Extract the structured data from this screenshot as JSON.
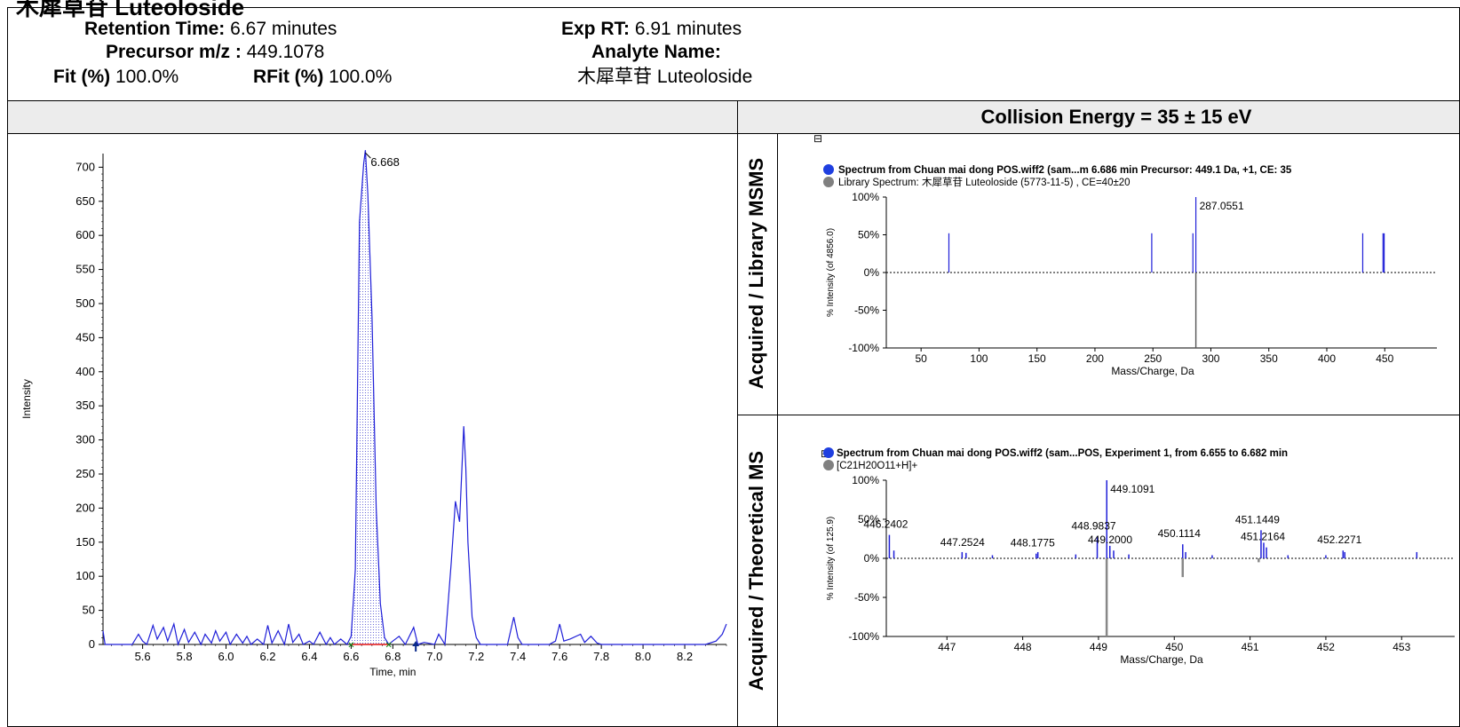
{
  "page_title": "木犀草苷 Luteoloside",
  "info": {
    "retention_time_label": "Retention Time:",
    "retention_time_value": "6.67 minutes",
    "precursor_label": "Precursor m/z :",
    "precursor_value": "449.1078",
    "fit_label": "Fit (%)",
    "fit_value": "100.0%",
    "rfit_label": "RFit (%)",
    "rfit_value": "100.0%",
    "exp_rt_label": "Exp RT:",
    "exp_rt_value": "6.91 minutes",
    "analyte_label": "Analyte Name:",
    "analyte_value": "木犀草苷 Luteoloside"
  },
  "collision_energy": "Collision Energy = 35 ± 15 eV",
  "side_labels": {
    "top": "Acquired / Library MSMS",
    "bottom": "Acquired / Theoretical MS"
  },
  "chart_data": [
    {
      "type": "line",
      "name": "chromatogram",
      "xlabel": "Time, min",
      "ylabel": "Intensity",
      "xlim": [
        5.41,
        8.4
      ],
      "ylim": [
        0,
        720
      ],
      "xticks": [
        "5.6",
        "5.8",
        "6.0",
        "6.2",
        "6.4",
        "6.6",
        "6.8",
        "7.0",
        "7.2",
        "7.4",
        "7.6",
        "7.8",
        "8.0",
        "8.2"
      ],
      "yticks": [
        "0",
        "50",
        "100",
        "150",
        "200",
        "250",
        "300",
        "350",
        "400",
        "450",
        "500",
        "550",
        "600",
        "650",
        "700"
      ],
      "peak_annotation": "6.668",
      "peak_rt": 6.668,
      "peak_intensity": 725,
      "integration_range": [
        6.6,
        6.78
      ],
      "exp_rt_marker": 6.91,
      "x": [
        5.41,
        5.42,
        5.45,
        5.5,
        5.52,
        5.55,
        5.58,
        5.6,
        5.62,
        5.65,
        5.67,
        5.7,
        5.72,
        5.75,
        5.77,
        5.8,
        5.82,
        5.85,
        5.88,
        5.9,
        5.93,
        5.95,
        5.97,
        6.0,
        6.02,
        6.05,
        6.08,
        6.1,
        6.12,
        6.15,
        6.18,
        6.2,
        6.22,
        6.25,
        6.28,
        6.3,
        6.32,
        6.35,
        6.37,
        6.4,
        6.42,
        6.45,
        6.48,
        6.5,
        6.52,
        6.55,
        6.58,
        6.6,
        6.62,
        6.64,
        6.66,
        6.668,
        6.68,
        6.7,
        6.72,
        6.74,
        6.76,
        6.78,
        6.8,
        6.83,
        6.86,
        6.9,
        6.92,
        6.95,
        7.0,
        7.02,
        7.05,
        7.08,
        7.1,
        7.12,
        7.14,
        7.15,
        7.16,
        7.18,
        7.2,
        7.22,
        7.25,
        7.3,
        7.35,
        7.38,
        7.4,
        7.42,
        7.45,
        7.5,
        7.55,
        7.58,
        7.6,
        7.62,
        7.65,
        7.7,
        7.72,
        7.75,
        7.78,
        7.8,
        7.85,
        7.9,
        8.0,
        8.1,
        8.2,
        8.3,
        8.35,
        8.38,
        8.4
      ],
      "y": [
        20,
        0,
        0,
        0,
        0,
        0,
        15,
        5,
        0,
        28,
        8,
        25,
        5,
        30,
        0,
        22,
        3,
        18,
        0,
        15,
        2,
        20,
        5,
        18,
        0,
        15,
        2,
        12,
        0,
        8,
        0,
        28,
        2,
        20,
        0,
        30,
        3,
        15,
        0,
        5,
        0,
        18,
        0,
        10,
        0,
        8,
        0,
        12,
        110,
        620,
        705,
        725,
        660,
        480,
        200,
        60,
        10,
        0,
        5,
        12,
        0,
        25,
        0,
        3,
        0,
        15,
        0,
        120,
        210,
        180,
        320,
        260,
        150,
        40,
        10,
        0,
        0,
        0,
        0,
        40,
        10,
        0,
        0,
        0,
        0,
        5,
        30,
        5,
        8,
        15,
        3,
        12,
        2,
        0,
        0,
        0,
        0,
        0,
        0,
        0,
        5,
        15,
        30
      ]
    },
    {
      "type": "bar",
      "name": "msms_comparison",
      "legend_acquired": "Spectrum from Chuan mai dong POS.wiff2 (sam...m 6.686 min Precursor: 449.1 Da, +1, CE: 35",
      "legend_library": "Library  Spectrum: 木犀草苷 Luteoloside (5773-11-5) , CE=40±20",
      "xlabel": "Mass/Charge, Da",
      "ylabel": "% Intensity (of 4856.0)",
      "xlim": [
        20,
        495
      ],
      "ylim": [
        -100,
        100
      ],
      "xticks": [
        "50",
        "100",
        "150",
        "200",
        "250",
        "300",
        "350",
        "400",
        "450"
      ],
      "yticks": [
        "100%",
        "50%",
        "0%",
        "-50%",
        "-100%"
      ],
      "acquired": [
        {
          "mz": 287.0551,
          "value": 100,
          "label": "287.0551"
        },
        {
          "mz": 249.0,
          "value": 52
        },
        {
          "mz": 284.5,
          "value": 52
        }
      ],
      "library": [
        {
          "mz": 287.0551,
          "value": -100
        }
      ],
      "acquired_extra": [
        {
          "mz": 74.0,
          "value": 52
        },
        {
          "mz": 431.0,
          "value": 52
        },
        {
          "mz": 448.5,
          "value": 52
        },
        {
          "mz": 449.5,
          "value": 52
        }
      ]
    },
    {
      "type": "bar",
      "name": "ms_comparison",
      "legend_acquired": "Spectrum from Chuan mai dong POS.wiff2 (sam...POS, Experiment 1, from 6.655 to 6.682 min",
      "legend_theoretical": "[C21H20O11+H]+",
      "xlabel": "Mass/Charge, Da",
      "ylabel": "% Intensity (of 125.9)",
      "xlim": [
        446.2,
        453.7
      ],
      "ylim": [
        -100,
        100
      ],
      "xticks": [
        "447",
        "448",
        "449",
        "450",
        "451",
        "452",
        "453"
      ],
      "yticks": [
        "100%",
        "50%",
        "0%",
        "-50%",
        "-100%"
      ],
      "acquired": [
        {
          "mz": 449.1091,
          "value": 100,
          "label": "449.1091"
        },
        {
          "mz": 446.2402,
          "value": 30,
          "label": "446.2402"
        },
        {
          "mz": 447.2524,
          "value": 7,
          "label": "447.2524"
        },
        {
          "mz": 448.1775,
          "value": 6,
          "label": "448.1775"
        },
        {
          "mz": 448.9837,
          "value": 28,
          "label": "448.9837"
        },
        {
          "mz": 449.2,
          "value": 10,
          "label": "449.2000"
        },
        {
          "mz": 450.1114,
          "value": 18,
          "label": "450.1114"
        },
        {
          "mz": 451.1449,
          "value": 36,
          "label": "451.1449"
        },
        {
          "mz": 451.2164,
          "value": 14,
          "label": "451.2164"
        },
        {
          "mz": 452.2271,
          "value": 10,
          "label": "452.2271"
        },
        {
          "mz": 453.2,
          "value": 8
        },
        {
          "mz": 446.3,
          "value": 10
        },
        {
          "mz": 447.2,
          "value": 8
        },
        {
          "mz": 447.6,
          "value": 4
        },
        {
          "mz": 448.2,
          "value": 8
        },
        {
          "mz": 448.7,
          "value": 5
        },
        {
          "mz": 449.15,
          "value": 16
        },
        {
          "mz": 449.4,
          "value": 5
        },
        {
          "mz": 450.15,
          "value": 8
        },
        {
          "mz": 450.5,
          "value": 4
        },
        {
          "mz": 451.18,
          "value": 20
        },
        {
          "mz": 451.5,
          "value": 4
        },
        {
          "mz": 452.0,
          "value": 4
        },
        {
          "mz": 452.25,
          "value": 8
        }
      ],
      "theoretical": [
        {
          "mz": 449.1078,
          "value": -100
        },
        {
          "mz": 450.111,
          "value": -24
        },
        {
          "mz": 451.114,
          "value": -5
        }
      ]
    }
  ]
}
